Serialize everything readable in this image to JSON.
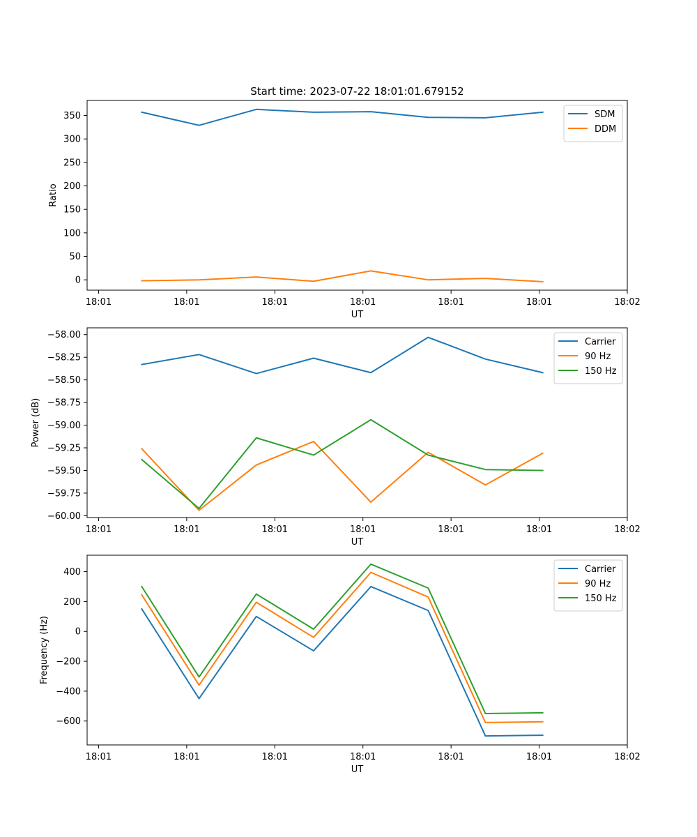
{
  "figure_title": "Start time: 2023-07-22 18:01:01.679152",
  "colors": {
    "c0": "#1f77b4",
    "c1": "#ff7f0e",
    "c2": "#2ca02c"
  },
  "chart_data": [
    {
      "type": "line",
      "title": "Start time: 2023-07-22 18:01:01.679152",
      "xlabel": "UT",
      "ylabel": "Ratio",
      "x_tick_labels": [
        "18:01",
        "18:01",
        "18:01",
        "18:01",
        "18:01",
        "18:01",
        "18:02"
      ],
      "x_tick_positions": [
        0,
        1,
        2,
        3,
        4,
        5,
        6
      ],
      "xlim": [
        -0.13,
        6.0
      ],
      "ylim": [
        -22,
        382
      ],
      "y_ticks": [
        0,
        50,
        100,
        150,
        200,
        250,
        300,
        350
      ],
      "x": [
        0.49,
        1.14,
        1.79,
        2.44,
        3.09,
        3.74,
        4.39,
        5.04
      ],
      "series": [
        {
          "name": "SDM",
          "color_key": "c0",
          "values": [
            357,
            329,
            363,
            357,
            358,
            346,
            345,
            357
          ]
        },
        {
          "name": "DDM",
          "color_key": "c1",
          "values": [
            -2,
            0,
            6,
            -3,
            19,
            0,
            3,
            -4
          ]
        }
      ],
      "legend": "top-right"
    },
    {
      "type": "line",
      "title": "",
      "xlabel": "UT",
      "ylabel": "Power (dB)",
      "x_tick_labels": [
        "18:01",
        "18:01",
        "18:01",
        "18:01",
        "18:01",
        "18:01",
        "18:02"
      ],
      "x_tick_positions": [
        0,
        1,
        2,
        3,
        4,
        5,
        6
      ],
      "xlim": [
        -0.13,
        6.0
      ],
      "ylim": [
        -60.02,
        -57.925
      ],
      "y_ticks": [
        -60.0,
        -59.75,
        -59.5,
        -59.25,
        -59.0,
        -58.75,
        -58.5,
        -58.25,
        -58.0
      ],
      "y_tick_labels": [
        "−60.00",
        "−59.75",
        "−59.50",
        "−59.25",
        "−59.00",
        "−58.75",
        "−58.50",
        "−58.25",
        "−58.00"
      ],
      "x": [
        0.49,
        1.14,
        1.79,
        2.44,
        3.09,
        3.74,
        4.39,
        5.04
      ],
      "series": [
        {
          "name": "Carrier",
          "color_key": "c0",
          "values": [
            -58.33,
            -58.22,
            -58.43,
            -58.26,
            -58.42,
            -58.03,
            -58.27,
            -58.42
          ]
        },
        {
          "name": "90 Hz",
          "color_key": "c1",
          "values": [
            -59.26,
            -59.94,
            -59.44,
            -59.18,
            -59.85,
            -59.3,
            -59.66,
            -59.31
          ]
        },
        {
          "name": "150 Hz",
          "color_key": "c2",
          "values": [
            -59.38,
            -59.92,
            -59.14,
            -59.33,
            -58.94,
            -59.33,
            -59.49,
            -59.5
          ]
        }
      ],
      "legend": "top-right"
    },
    {
      "type": "line",
      "title": "",
      "xlabel": "UT",
      "ylabel": "Frequency (Hz)",
      "x_tick_labels": [
        "18:01",
        "18:01",
        "18:01",
        "18:01",
        "18:01",
        "18:01",
        "18:02"
      ],
      "x_tick_positions": [
        0,
        1,
        2,
        3,
        4,
        5,
        6
      ],
      "xlim": [
        -0.13,
        6.0
      ],
      "ylim": [
        -760,
        510
      ],
      "y_ticks": [
        -600,
        -400,
        -200,
        0,
        200,
        400
      ],
      "y_tick_labels": [
        "−600",
        "−400",
        "−200",
        "0",
        "200",
        "400"
      ],
      "x": [
        0.49,
        1.14,
        1.79,
        2.44,
        3.09,
        3.74,
        4.39,
        5.04
      ],
      "series": [
        {
          "name": "Carrier",
          "color_key": "c0",
          "values": [
            150,
            -450,
            100,
            -130,
            300,
            140,
            -700,
            -695
          ]
        },
        {
          "name": "90 Hz",
          "color_key": "c1",
          "values": [
            245,
            -360,
            195,
            -40,
            395,
            230,
            -610,
            -605
          ]
        },
        {
          "name": "150 Hz",
          "color_key": "c2",
          "values": [
            300,
            -305,
            250,
            15,
            450,
            290,
            -550,
            -545
          ]
        }
      ],
      "legend": "top-right"
    }
  ]
}
